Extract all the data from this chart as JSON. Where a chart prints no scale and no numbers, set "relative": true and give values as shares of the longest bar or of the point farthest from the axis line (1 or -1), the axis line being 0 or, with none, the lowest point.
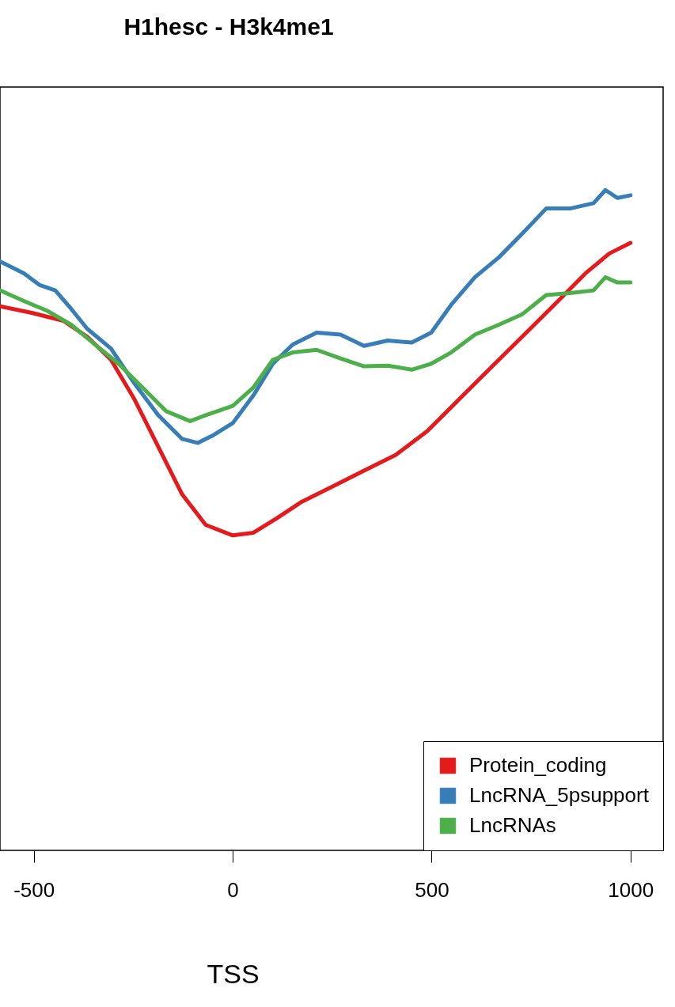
{
  "chart_data": {
    "type": "line",
    "title": "H1hesc - H3k4me1",
    "xlabel": "TSS",
    "relative": true,
    "xlim": [
      -585,
      1082
    ],
    "xticks": [
      -500,
      0,
      500,
      1000
    ],
    "grid": false,
    "legend": "bottom right",
    "marker": "none",
    "line_style": "solid",
    "series": [
      {
        "name": "Protein_coding",
        "color": "#e41a1c",
        "x": [
          -585,
          -505,
          -426,
          -366,
          -306,
          -247,
          -187,
          -127,
          -68,
          0,
          52,
          111,
          171,
          251,
          330,
          410,
          489,
          569,
          649,
          728,
          808,
          887,
          947,
          1000
        ],
        "values": [
          0.824,
          0.814,
          0.802,
          0.778,
          0.743,
          0.683,
          0.611,
          0.539,
          0.493,
          0.477,
          0.481,
          0.503,
          0.527,
          0.551,
          0.575,
          0.599,
          0.635,
          0.683,
          0.731,
          0.778,
          0.826,
          0.874,
          0.904,
          0.92
        ]
      },
      {
        "name": "LncRNA_5psupport",
        "color": "#377eb8",
        "x": [
          -585,
          -525,
          -485,
          -446,
          -406,
          -366,
          -306,
          -247,
          -187,
          -127,
          -88,
          -48,
          0,
          52,
          101,
          151,
          211,
          271,
          330,
          390,
          450,
          499,
          549,
          609,
          669,
          728,
          788,
          848,
          907,
          937,
          967,
          1000
        ],
        "values": [
          0.892,
          0.874,
          0.856,
          0.848,
          0.82,
          0.79,
          0.76,
          0.707,
          0.659,
          0.623,
          0.617,
          0.629,
          0.647,
          0.689,
          0.737,
          0.766,
          0.784,
          0.781,
          0.764,
          0.772,
          0.769,
          0.784,
          0.826,
          0.868,
          0.898,
          0.934,
          0.972,
          0.972,
          0.98,
          1,
          0.988,
          0.992
        ]
      },
      {
        "name": "LncRNAs",
        "color": "#4daf4a",
        "x": [
          -585,
          -525,
          -466,
          -406,
          -346,
          -287,
          -227,
          -167,
          -107,
          -68,
          0,
          52,
          101,
          151,
          211,
          271,
          330,
          390,
          450,
          499,
          549,
          609,
          669,
          728,
          788,
          848,
          907,
          937,
          967,
          1000
        ],
        "values": [
          0.848,
          0.832,
          0.817,
          0.796,
          0.766,
          0.737,
          0.701,
          0.665,
          0.65,
          0.659,
          0.673,
          0.701,
          0.743,
          0.754,
          0.758,
          0.745,
          0.733,
          0.734,
          0.728,
          0.737,
          0.754,
          0.781,
          0.796,
          0.812,
          0.841,
          0.844,
          0.848,
          0.868,
          0.86,
          0.86
        ]
      }
    ]
  }
}
